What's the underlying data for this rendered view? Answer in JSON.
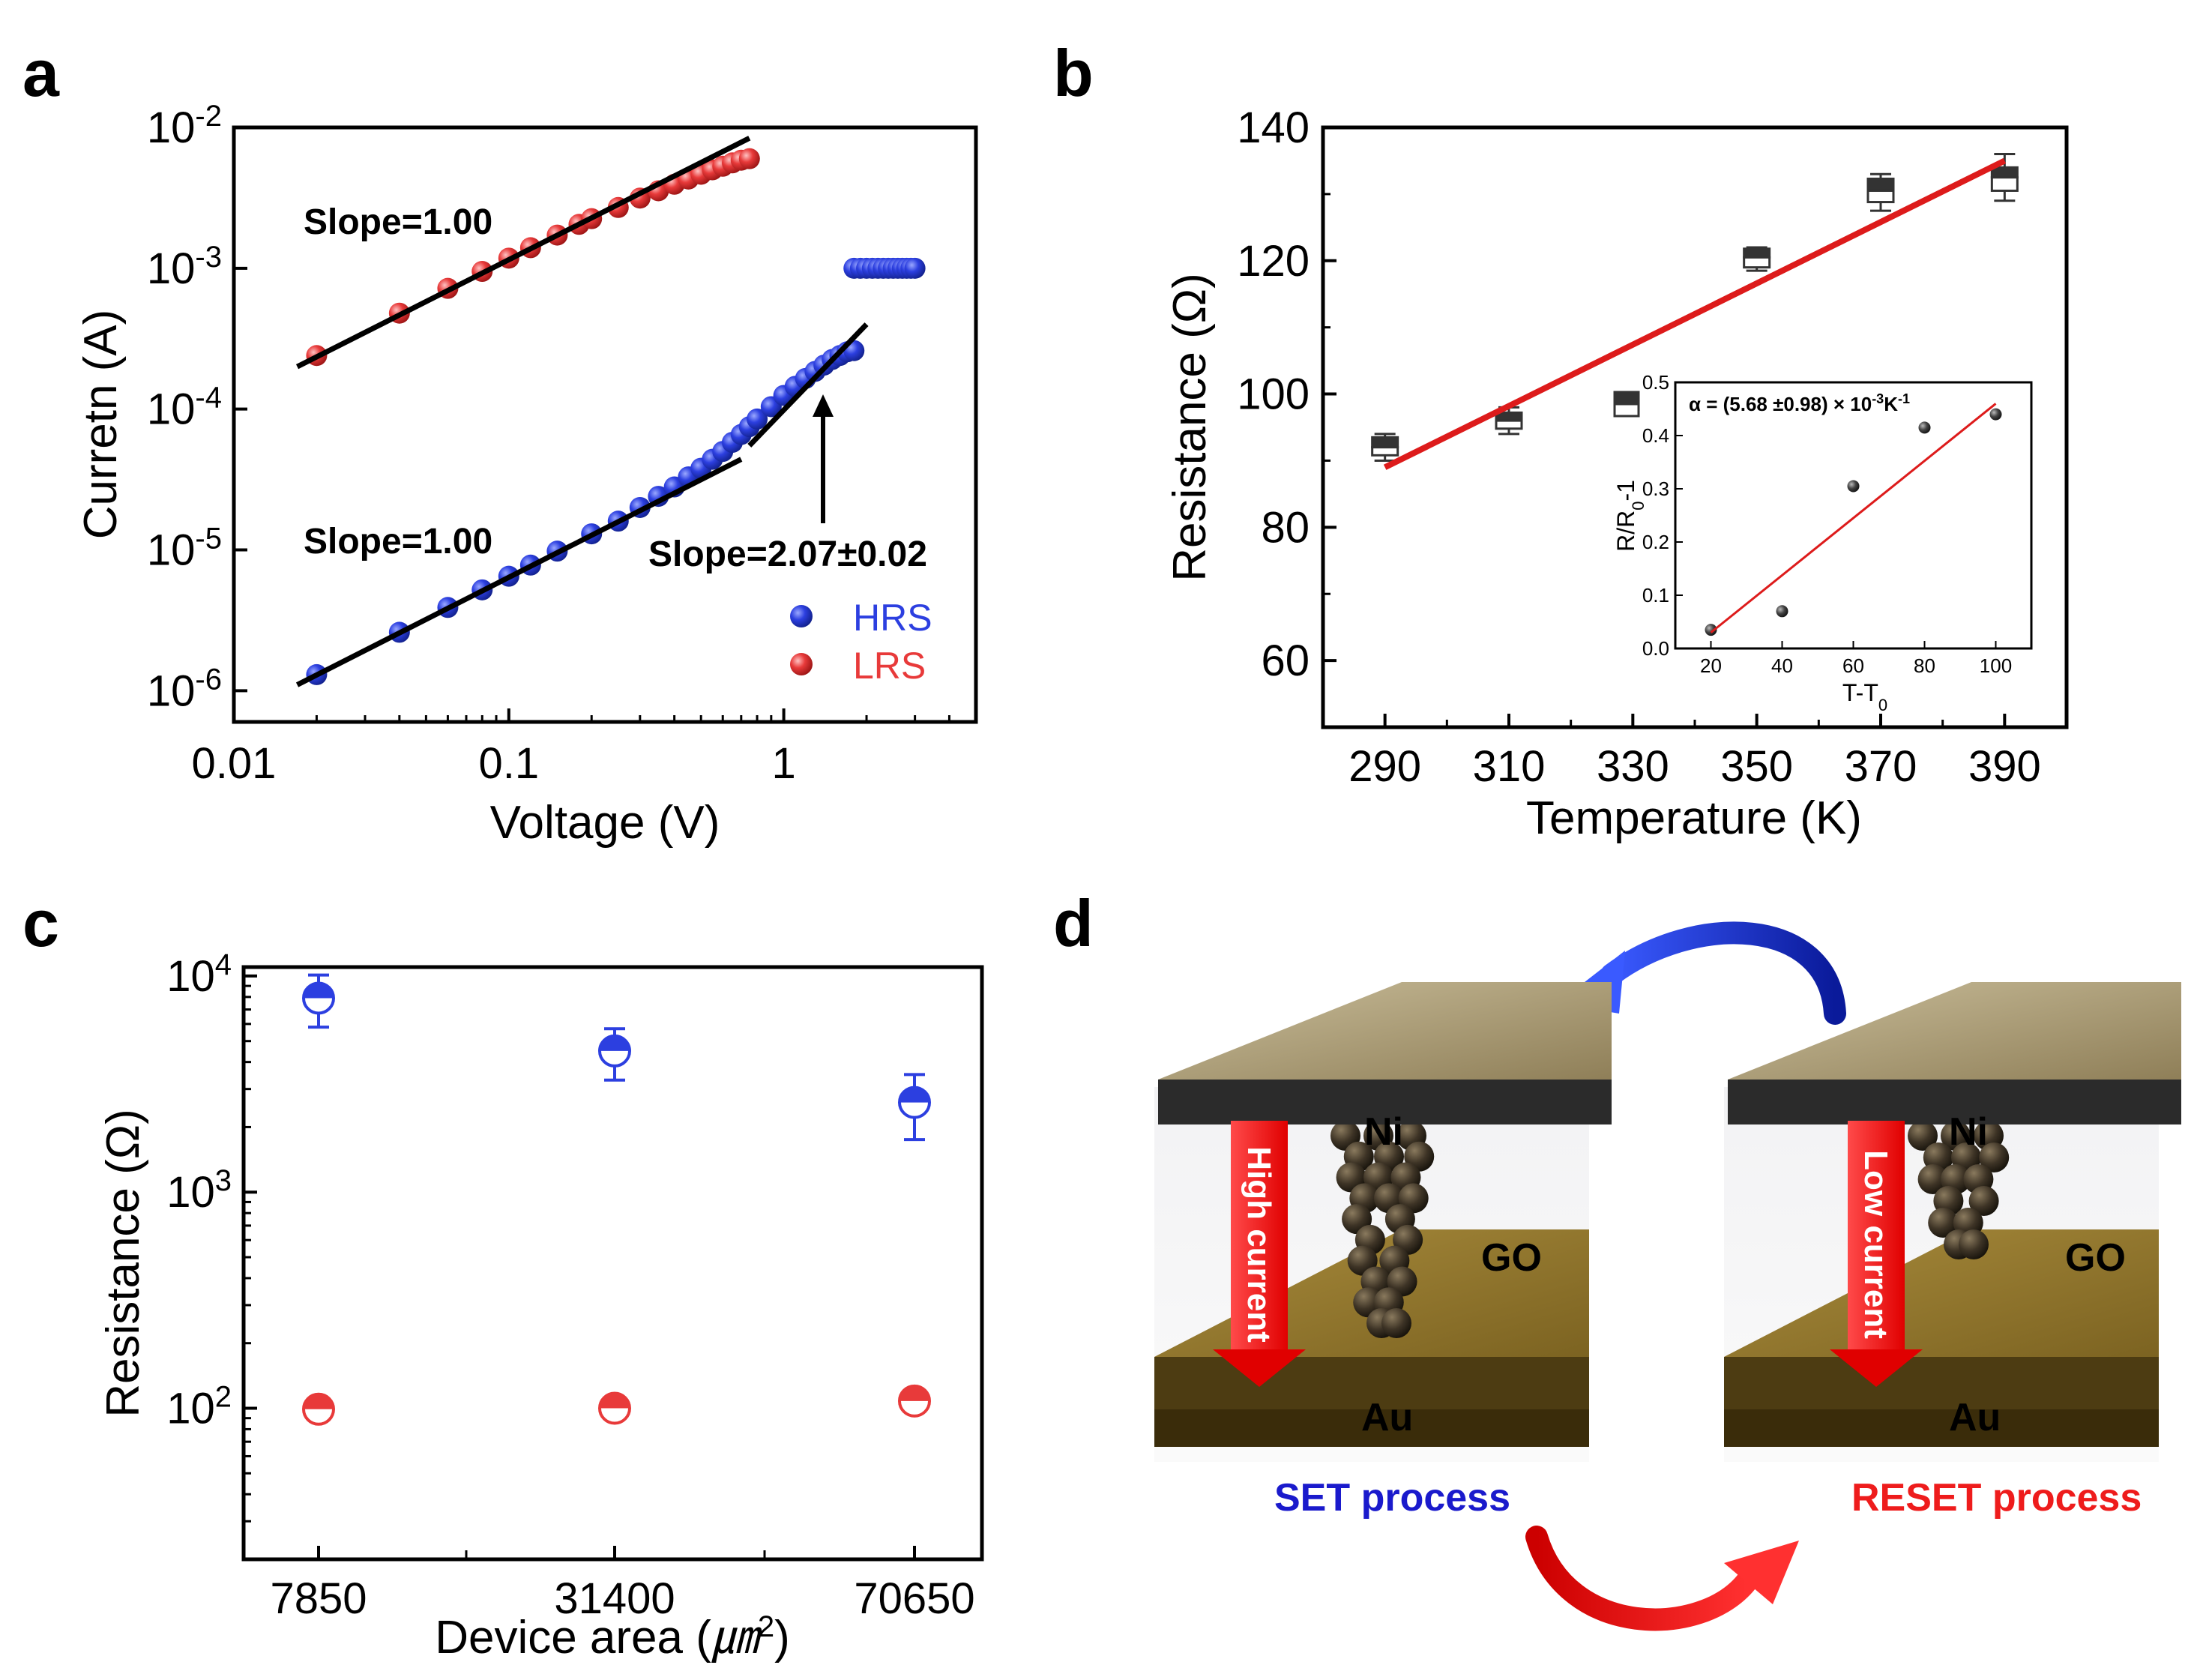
{
  "panels": {
    "a": "a",
    "b": "b",
    "c": "c",
    "d": "d"
  },
  "colors": {
    "hrs": "#2c3fe0",
    "lrs": "#e83a3a",
    "fit_b": "#dd1b1b",
    "dark": "#333333",
    "set": "#1a1acc",
    "reset": "#ee1c1c"
  },
  "chart_data": [
    {
      "panel": "a",
      "type": "scatter",
      "xscale": "log",
      "yscale": "log",
      "xlabel": "Voltage (V)",
      "ylabel": "Curretn (A)",
      "xlim": [
        0.01,
        5
      ],
      "ylim": [
        6e-07,
        0.01
      ],
      "xticks": [
        {
          "v": 0.01,
          "label": "0.01"
        },
        {
          "v": 0.1,
          "label": "0.1"
        },
        {
          "v": 1,
          "label": "1"
        }
      ],
      "yticks": [
        {
          "v": 0.01,
          "b": "10",
          "e": "-2"
        },
        {
          "v": 0.001,
          "b": "10",
          "e": "-3"
        },
        {
          "v": 0.0001,
          "b": "10",
          "e": "-4"
        },
        {
          "v": 1e-05,
          "b": "10",
          "e": "-5"
        },
        {
          "v": 1e-06,
          "b": "10",
          "e": "-6"
        }
      ],
      "series": [
        {
          "name": "HRS",
          "color": "#2c3fe0",
          "x": [
            0.02,
            0.04,
            0.06,
            0.08,
            0.1,
            0.12,
            0.15,
            0.2,
            0.25,
            0.3,
            0.35,
            0.4,
            0.45,
            0.5,
            0.55,
            0.6,
            0.65,
            0.7,
            0.75,
            0.8,
            0.9,
            1.0,
            1.1,
            1.2,
            1.3,
            1.4,
            1.5,
            1.6,
            1.7,
            1.8
          ],
          "y": [
            1.3e-06,
            2.6e-06,
            3.9e-06,
            5.2e-06,
            6.5e-06,
            7.8e-06,
            9.8e-06,
            1.3e-05,
            1.6e-05,
            2e-05,
            2.4e-05,
            2.8e-05,
            3.3e-05,
            3.8e-05,
            4.4e-05,
            5e-05,
            5.8e-05,
            6.6e-05,
            7.5e-05,
            8.5e-05,
            0.000104,
            0.000125,
            0.000145,
            0.000165,
            0.000185,
            0.000205,
            0.000225,
            0.00024,
            0.000255,
            0.00026
          ]
        },
        {
          "name": "HRS compliance",
          "color": "#2c3fe0",
          "x": [
            1.8,
            1.9,
            2.0,
            2.1,
            2.2,
            2.3,
            2.4,
            2.5,
            2.6,
            2.7,
            2.8,
            2.9,
            3.0
          ],
          "y": [
            0.001,
            0.001,
            0.001,
            0.001,
            0.001,
            0.001,
            0.001,
            0.001,
            0.001,
            0.001,
            0.001,
            0.001,
            0.001
          ]
        },
        {
          "name": "LRS",
          "color": "#e83a3a",
          "x": [
            0.02,
            0.04,
            0.06,
            0.08,
            0.1,
            0.12,
            0.15,
            0.18,
            0.2,
            0.25,
            0.3,
            0.35,
            0.4,
            0.45,
            0.5,
            0.55,
            0.6,
            0.65,
            0.7,
            0.75
          ],
          "y": [
            0.00024,
            0.00048,
            0.00072,
            0.00095,
            0.00118,
            0.0014,
            0.00172,
            0.00205,
            0.00225,
            0.0027,
            0.00315,
            0.00355,
            0.00395,
            0.0043,
            0.00465,
            0.005,
            0.0053,
            0.0056,
            0.00585,
            0.006
          ]
        }
      ],
      "fits": [
        {
          "label": "Slope=1.00",
          "x": [
            0.017,
            0.75
          ],
          "y": [
            0.0002,
            0.0084
          ]
        },
        {
          "label": "Slope=1.00",
          "x": [
            0.017,
            0.7
          ],
          "y": [
            1.1e-06,
            4.4e-05
          ]
        },
        {
          "label": "Slope=2.07±0.02",
          "x": [
            0.75,
            2.0
          ],
          "y": [
            5.5e-05,
            0.0004
          ]
        }
      ],
      "annotations": [
        "Slope=1.00",
        "Slope=1.00",
        "Slope=2.07±0.02"
      ],
      "legend": [
        "HRS",
        "LRS"
      ]
    },
    {
      "panel": "b",
      "type": "box",
      "xlabel": "Temperature (K)",
      "ylabel": "Resistance (Ω)",
      "xlim": [
        280,
        400
      ],
      "ylim": [
        50,
        140
      ],
      "xticks": [
        "290",
        "310",
        "330",
        "350",
        "370",
        "390"
      ],
      "yticks": [
        "60",
        "80",
        "100",
        "120",
        "140"
      ],
      "points": [
        {
          "x": 290,
          "median": 92,
          "q1": 90.8,
          "q3": 93.5,
          "min": 90,
          "max": 94
        },
        {
          "x": 310,
          "median": 96,
          "q1": 94.8,
          "q3": 97.2,
          "min": 94,
          "max": 98
        },
        {
          "x": 350,
          "median": 120.5,
          "q1": 119,
          "q3": 121.8,
          "min": 118.5,
          "max": 122
        },
        {
          "x": 370,
          "median": 130.5,
          "q1": 128.8,
          "q3": 132.3,
          "min": 127.5,
          "max": 133
        },
        {
          "x": 390,
          "median": 132.5,
          "q1": 130.5,
          "q3": 134,
          "min": 129,
          "max": 136
        }
      ],
      "fit": {
        "x": [
          290,
          390
        ],
        "y": [
          89,
          135
        ]
      },
      "inset": {
        "xlabel": "T-T",
        "xlabel_sub": "0",
        "ylabel": "R/R",
        "ylabel_sub": "0",
        "ylabel_tail": "-1",
        "title_prefix": "α = (5.68 ±0.98)  × 10",
        "title_exp": "-3",
        "title_unit": "K",
        "title_unit_exp": "-1",
        "xlim": [
          10,
          110
        ],
        "ylim": [
          0,
          0.5
        ],
        "xticks": [
          "20",
          "40",
          "60",
          "80",
          "100"
        ],
        "yticks": [
          "0.0",
          "0.1",
          "0.2",
          "0.3",
          "0.4",
          "0.5"
        ],
        "x": [
          20,
          40,
          60,
          80,
          100
        ],
        "y": [
          0.035,
          0.07,
          0.305,
          0.415,
          0.44
        ],
        "fit": {
          "x": [
            20,
            100
          ],
          "y": [
            0.03,
            0.46
          ]
        }
      }
    },
    {
      "panel": "c",
      "type": "scatter",
      "yscale": "log",
      "xlabel_prefix": "Device area (",
      "xlabel_unit": "㎛",
      "xlabel_exp": "2",
      "xlabel_suffix": ")",
      "ylabel": "Resistance (Ω)",
      "ylim": [
        20,
        11000
      ],
      "xticks": [
        "7850",
        "31400",
        "70650"
      ],
      "yticks": [
        {
          "v": 10000,
          "b": "10",
          "e": "4"
        },
        {
          "v": 1000,
          "b": "10",
          "e": "3"
        },
        {
          "v": 100,
          "b": "10",
          "e": "2"
        }
      ],
      "series": [
        {
          "name": "HRS",
          "color": "#2c3fe0",
          "values": [
            7900,
            4500,
            2600
          ],
          "err_low": [
            5800,
            3300,
            1750
          ],
          "err_high": [
            10100,
            5700,
            3500
          ]
        },
        {
          "name": "LRS",
          "color": "#e83a3a",
          "values": [
            99,
            100,
            108
          ],
          "err_low": [
            90,
            93,
            100
          ],
          "err_high": [
            106,
            106,
            116
          ]
        }
      ]
    }
  ],
  "diagram": {
    "left": {
      "top_label": "Ni",
      "mid_label": "GO",
      "bottom_label": "Au",
      "arrow_label": "High current",
      "process": "SET process"
    },
    "right": {
      "top_label": "Ni",
      "mid_label": "GO",
      "bottom_label": "Au",
      "arrow_label": "Low current",
      "process": "RESET process"
    }
  }
}
